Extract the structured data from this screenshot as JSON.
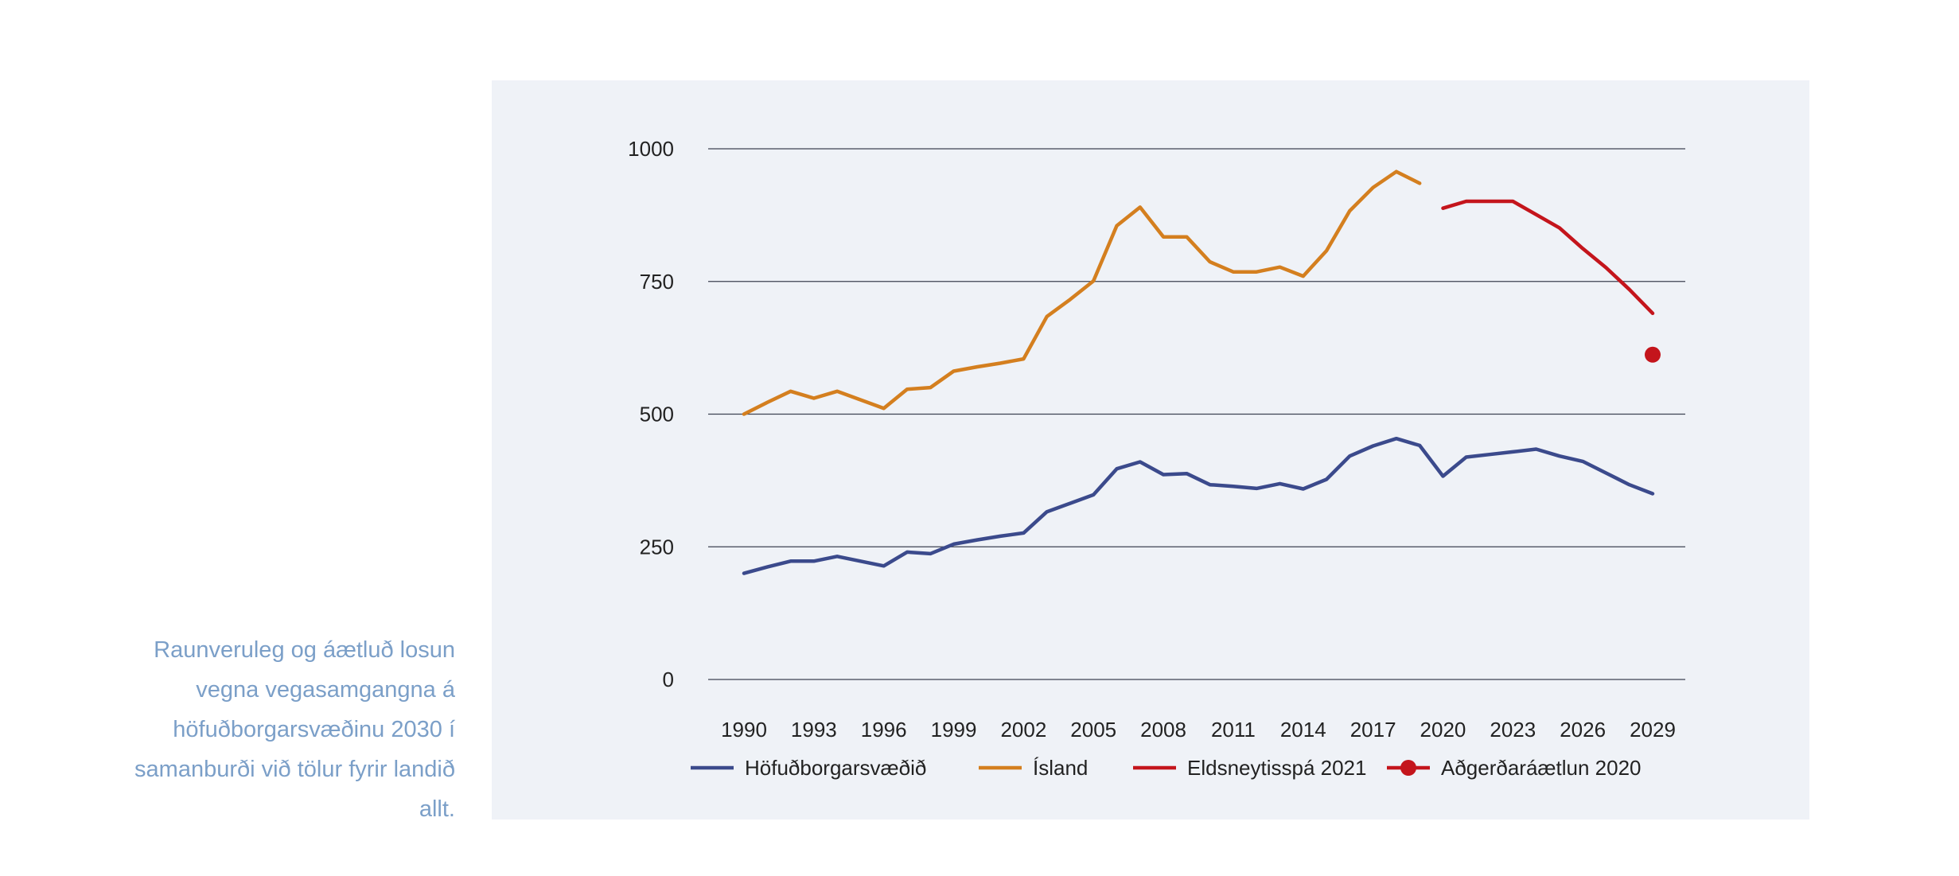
{
  "caption": "Raunveruleg og áætluð losun vegna vegasamgangna á höfuðborgarsvæðinu 2030 í samanburði við tölur fyrir landið allt.",
  "chart_data": {
    "type": "line",
    "title": "",
    "xlabel": "",
    "ylabel": "",
    "ylim": [
      0,
      1000
    ],
    "yticks": [
      0,
      250,
      500,
      750,
      1000
    ],
    "xlim": [
      1990,
      2029
    ],
    "xticks": [
      1990,
      1993,
      1996,
      1999,
      2002,
      2005,
      2008,
      2011,
      2014,
      2017,
      2020,
      2023,
      2026,
      2029
    ],
    "grid": "horizontal",
    "legend_position": "bottom",
    "series": [
      {
        "name": "Höfuðborgarsvæðið",
        "color": "#3b4a8c",
        "kind": "line",
        "x": [
          1990,
          1991,
          1992,
          1993,
          1994,
          1995,
          1996,
          1997,
          1998,
          1999,
          2000,
          2001,
          2002,
          2003,
          2004,
          2005,
          2006,
          2007,
          2008,
          2009,
          2010,
          2011,
          2012,
          2013,
          2014,
          2015,
          2016,
          2017,
          2018,
          2019,
          2020,
          2021,
          2022,
          2023,
          2024,
          2025,
          2026,
          2027,
          2028,
          2029
        ],
        "values": [
          200,
          212,
          223,
          223,
          232,
          223,
          214,
          240,
          237,
          255,
          263,
          270,
          276,
          316,
          332,
          348,
          397,
          410,
          386,
          388,
          367,
          364,
          360,
          369,
          359,
          377,
          421,
          440,
          454,
          441,
          383,
          419,
          424,
          429,
          434,
          421,
          411,
          389,
          367,
          350
        ]
      },
      {
        "name": "Ísland",
        "color": "#d47f1f",
        "kind": "line",
        "x": [
          1990,
          1991,
          1992,
          1993,
          1994,
          1995,
          1996,
          1997,
          1998,
          1999,
          2000,
          2001,
          2002,
          2003,
          2004,
          2005,
          2006,
          2007,
          2008,
          2009,
          2010,
          2011,
          2012,
          2013,
          2014,
          2015,
          2016,
          2017,
          2018,
          2019
        ],
        "values": [
          500,
          522,
          543,
          530,
          543,
          527,
          511,
          547,
          550,
          581,
          589,
          596,
          604,
          684,
          716,
          751,
          855,
          890,
          834,
          834,
          787,
          768,
          768,
          777,
          760,
          808,
          883,
          927,
          957,
          935
        ]
      },
      {
        "name": "Eldsneytisspá 2021",
        "color": "#c4151c",
        "kind": "line",
        "x": [
          2020,
          2021,
          2022,
          2023,
          2024,
          2025,
          2026,
          2027,
          2028,
          2029
        ],
        "values": [
          888,
          901,
          901,
          901,
          876,
          851,
          812,
          776,
          735,
          690
        ]
      },
      {
        "name": "Aðgerðaráætlun 2020",
        "color": "#c4151c",
        "kind": "point",
        "x": [
          2029
        ],
        "values": [
          612
        ]
      }
    ]
  }
}
